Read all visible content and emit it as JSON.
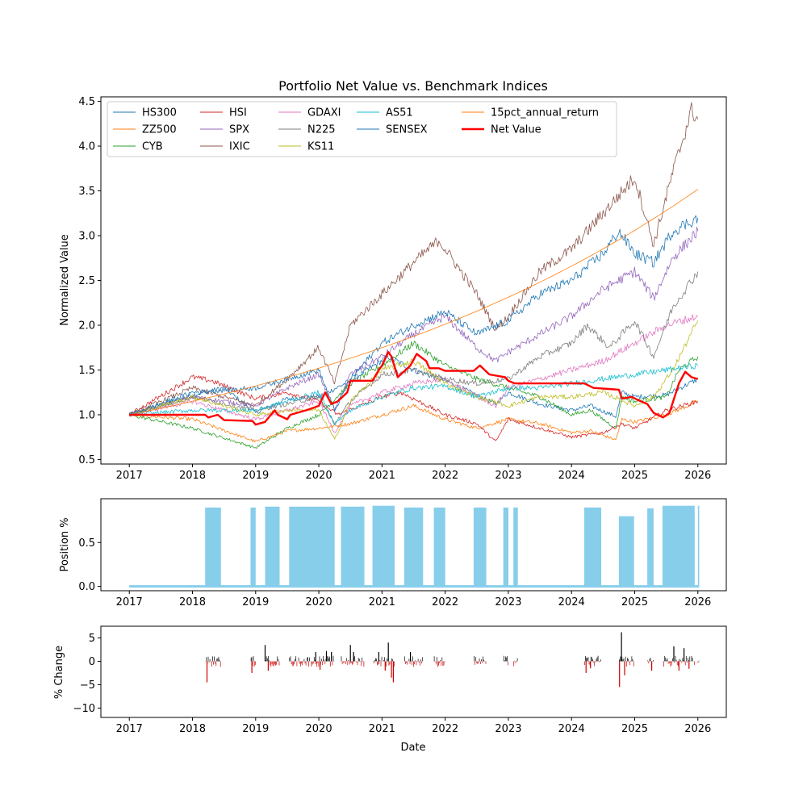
{
  "chart_data": [
    {
      "type": "line",
      "title": "Portfolio Net Value vs. Benchmark Indices",
      "xlabel": "",
      "ylabel": "Normalized Value",
      "xlim": [
        2016.55,
        2026.45
      ],
      "ylim": [
        0.45,
        4.55
      ],
      "x_ticks": [
        2017,
        2018,
        2019,
        2020,
        2021,
        2022,
        2023,
        2024,
        2025,
        2026
      ],
      "x_tick_labels": [
        "2017",
        "2018",
        "2019",
        "2020",
        "2021",
        "2022",
        "2023",
        "2024",
        "2025",
        "2026"
      ],
      "y_ticks": [
        0.5,
        1.0,
        1.5,
        2.0,
        2.5,
        3.0,
        3.5,
        4.0,
        4.5
      ],
      "y_tick_labels": [
        "0.5",
        "1.0",
        "1.5",
        "2.0",
        "2.5",
        "3.0",
        "3.5",
        "4.0",
        "4.5"
      ],
      "grid": false,
      "legend_position": "top-left",
      "series": [
        {
          "name": "HS300",
          "color": "#1f77b4",
          "x": [
            2017,
            2018,
            2018.5,
            2019,
            2019.5,
            2020,
            2020.5,
            2021.1,
            2021.5,
            2022,
            2022.5,
            2022.8,
            2023,
            2023.5,
            2024,
            2024.3,
            2024.7,
            2024.8,
            2025,
            2025.5,
            2026
          ],
          "y": [
            1.0,
            1.22,
            1.3,
            1.02,
            1.18,
            1.2,
            1.38,
            1.65,
            1.5,
            1.38,
            1.22,
            1.12,
            1.25,
            1.12,
            1.05,
            1.1,
            0.98,
            1.25,
            1.2,
            1.22,
            1.4
          ]
        },
        {
          "name": "ZZ500",
          "color": "#ff7f0e",
          "x": [
            2017,
            2018,
            2019,
            2019.5,
            2020,
            2020.5,
            2021,
            2021.5,
            2022,
            2022.5,
            2023,
            2023.5,
            2024,
            2024.3,
            2024.7,
            2024.8,
            2025,
            2025.5,
            2026
          ],
          "y": [
            1.0,
            0.95,
            0.7,
            0.82,
            0.85,
            0.9,
            1.0,
            1.1,
            0.95,
            0.85,
            0.95,
            0.9,
            0.8,
            0.82,
            0.72,
            0.95,
            0.92,
            1.0,
            1.15
          ]
        },
        {
          "name": "CYB",
          "color": "#2ca02c",
          "x": [
            2017,
            2018,
            2019,
            2019.5,
            2020,
            2020.5,
            2021,
            2021.5,
            2022,
            2022.5,
            2023,
            2023.5,
            2024,
            2024.3,
            2024.7,
            2024.8,
            2025,
            2025.5,
            2025.7,
            2026
          ],
          "y": [
            1.0,
            0.85,
            0.63,
            0.85,
            1.0,
            1.35,
            1.55,
            1.8,
            1.55,
            1.4,
            1.3,
            1.2,
            1.0,
            1.05,
            0.85,
            1.2,
            1.15,
            1.2,
            1.5,
            1.65
          ]
        },
        {
          "name": "HSI",
          "color": "#d62728",
          "x": [
            2017,
            2018,
            2018.3,
            2019,
            2019.5,
            2020,
            2020.3,
            2021,
            2021.3,
            2022,
            2022.5,
            2022.8,
            2023,
            2023.5,
            2024,
            2024.5,
            2024.8,
            2025,
            2025.5,
            2026
          ],
          "y": [
            1.0,
            1.42,
            1.38,
            1.18,
            1.25,
            1.15,
            1.0,
            1.2,
            1.25,
            1.0,
            0.9,
            0.7,
            0.95,
            0.85,
            0.75,
            0.8,
            0.9,
            0.85,
            1.05,
            1.15
          ]
        },
        {
          "name": "SPX",
          "color": "#9467bd",
          "x": [
            2017,
            2018,
            2019,
            2019.5,
            2020,
            2020.25,
            2020.5,
            2021,
            2021.5,
            2022,
            2022.5,
            2022.8,
            2023,
            2023.5,
            2024,
            2024.5,
            2025,
            2025.3,
            2025.6,
            2026
          ],
          "y": [
            1.0,
            1.2,
            1.1,
            1.3,
            1.45,
            1.05,
            1.45,
            1.65,
            1.9,
            2.1,
            1.75,
            1.6,
            1.7,
            1.9,
            2.1,
            2.4,
            2.6,
            2.3,
            2.75,
            3.05
          ]
        },
        {
          "name": "IXIC",
          "color": "#8c564b",
          "x": [
            2017,
            2018,
            2019,
            2019.5,
            2020,
            2020.25,
            2020.5,
            2021,
            2021.5,
            2021.9,
            2022.5,
            2022.8,
            2023,
            2023.5,
            2024,
            2024.5,
            2025,
            2025.3,
            2025.6,
            2025.9,
            2026
          ],
          "y": [
            1.0,
            1.3,
            1.1,
            1.4,
            1.75,
            1.35,
            2.0,
            2.35,
            2.7,
            2.95,
            2.35,
            1.95,
            2.1,
            2.6,
            2.85,
            3.25,
            3.65,
            2.9,
            3.7,
            4.4,
            4.3
          ]
        },
        {
          "name": "GDAXI",
          "color": "#e377c2",
          "x": [
            2017,
            2018,
            2019,
            2019.5,
            2020,
            2020.25,
            2020.5,
            2021,
            2021.5,
            2022,
            2022.5,
            2022.8,
            2023,
            2023.5,
            2024,
            2024.5,
            2025,
            2025.5,
            2026
          ],
          "y": [
            1.0,
            1.15,
            0.95,
            1.05,
            1.15,
            0.8,
            1.1,
            1.25,
            1.35,
            1.4,
            1.2,
            1.1,
            1.3,
            1.4,
            1.5,
            1.6,
            1.8,
            2.0,
            2.1
          ]
        },
        {
          "name": "N225",
          "color": "#7f7f7f",
          "x": [
            2017,
            2018,
            2019,
            2019.5,
            2020,
            2020.25,
            2020.5,
            2021,
            2021.5,
            2022,
            2022.5,
            2023,
            2023.5,
            2024,
            2024.25,
            2024.6,
            2025,
            2025.3,
            2025.6,
            2026
          ],
          "y": [
            1.0,
            1.2,
            1.05,
            1.12,
            1.2,
            0.9,
            1.15,
            1.45,
            1.5,
            1.4,
            1.35,
            1.4,
            1.65,
            1.8,
            2.0,
            1.75,
            2.05,
            1.65,
            2.2,
            2.6
          ]
        },
        {
          "name": "KS11",
          "color": "#bcbd22",
          "x": [
            2017,
            2018,
            2019,
            2019.5,
            2020,
            2020.25,
            2020.5,
            2021,
            2021.5,
            2022,
            2022.5,
            2023,
            2023.5,
            2024,
            2024.5,
            2025,
            2025.3,
            2025.6,
            2026
          ],
          "y": [
            1.0,
            1.2,
            1.0,
            1.05,
            1.05,
            0.72,
            1.15,
            1.5,
            1.6,
            1.35,
            1.2,
            1.1,
            1.2,
            1.2,
            1.25,
            1.1,
            1.2,
            1.5,
            2.05
          ]
        },
        {
          "name": "AS51",
          "color": "#17becf",
          "x": [
            2017,
            2018,
            2019,
            2019.5,
            2020,
            2020.25,
            2020.5,
            2021,
            2021.5,
            2022,
            2022.5,
            2023,
            2023.5,
            2024,
            2024.5,
            2025,
            2025.5,
            2026
          ],
          "y": [
            1.0,
            1.05,
            1.05,
            1.15,
            1.25,
            0.9,
            1.05,
            1.2,
            1.3,
            1.32,
            1.2,
            1.3,
            1.3,
            1.35,
            1.4,
            1.45,
            1.5,
            1.55
          ]
        },
        {
          "name": "SENSEX",
          "color": "#1f77b4",
          "x": [
            2017,
            2018,
            2019,
            2019.5,
            2020,
            2020.25,
            2020.5,
            2021,
            2021.5,
            2022,
            2022.5,
            2023,
            2023.5,
            2024,
            2024.5,
            2024.75,
            2025,
            2025.3,
            2025.6,
            2026
          ],
          "y": [
            1.0,
            1.25,
            1.3,
            1.4,
            1.5,
            1.05,
            1.4,
            1.8,
            2.0,
            2.15,
            1.9,
            2.05,
            2.35,
            2.5,
            2.8,
            3.05,
            2.8,
            2.7,
            3.05,
            3.2
          ]
        },
        {
          "name": "15pct_annual_return",
          "color": "#ff7f0e",
          "x": [
            2017,
            2018,
            2019,
            2020,
            2021,
            2022,
            2023,
            2024,
            2025,
            2026
          ],
          "y": [
            1.0,
            1.15,
            1.32,
            1.52,
            1.75,
            2.01,
            2.31,
            2.66,
            3.06,
            3.52
          ]
        },
        {
          "name": "Net Value",
          "color": "#ff0000",
          "x": [
            2017,
            2018.2,
            2018.25,
            2018.4,
            2018.5,
            2018.95,
            2019.0,
            2019.15,
            2019.3,
            2019.35,
            2019.5,
            2019.55,
            2019.8,
            2020.0,
            2020.1,
            2020.2,
            2020.3,
            2020.45,
            2020.5,
            2020.85,
            2020.95,
            2021.0,
            2021.1,
            2021.15,
            2021.25,
            2021.45,
            2021.55,
            2021.7,
            2021.75,
            2021.9,
            2022.0,
            2022.45,
            2022.55,
            2022.7,
            2022.95,
            2023.0,
            2023.1,
            2023.15,
            2024.2,
            2024.35,
            2024.75,
            2024.8,
            2024.95,
            2025.1,
            2025.2,
            2025.3,
            2025.45,
            2025.55,
            2025.7,
            2025.8,
            2025.9,
            2026
          ],
          "y": [
            1.0,
            1.0,
            0.97,
            1.0,
            0.94,
            0.93,
            0.89,
            0.92,
            1.05,
            1.0,
            0.95,
            1.0,
            1.05,
            1.1,
            1.25,
            1.12,
            1.15,
            1.25,
            1.38,
            1.38,
            1.5,
            1.55,
            1.7,
            1.65,
            1.42,
            1.55,
            1.68,
            1.6,
            1.52,
            1.52,
            1.49,
            1.49,
            1.55,
            1.45,
            1.42,
            1.38,
            1.35,
            1.35,
            1.35,
            1.3,
            1.28,
            1.18,
            1.2,
            1.15,
            1.12,
            1.02,
            0.97,
            1.02,
            1.35,
            1.48,
            1.42,
            1.4
          ]
        }
      ]
    },
    {
      "type": "area",
      "title": "",
      "xlabel": "",
      "ylabel": "Position %",
      "xlim": [
        2016.55,
        2026.45
      ],
      "ylim": [
        -0.05,
        1.0
      ],
      "x_ticks": [
        2017,
        2018,
        2019,
        2020,
        2021,
        2022,
        2023,
        2024,
        2025,
        2026
      ],
      "x_tick_labels": [
        "2017",
        "2018",
        "2019",
        "2020",
        "2021",
        "2022",
        "2023",
        "2024",
        "2025",
        "2026"
      ],
      "y_ticks": [
        0.0,
        0.5
      ],
      "y_tick_labels": [
        "0.0",
        "0.5"
      ],
      "color": "#87ceeb",
      "baseline": 0.0,
      "position_blocks": [
        {
          "start": 2018.2,
          "end": 2018.45,
          "value": 0.9
        },
        {
          "start": 2018.92,
          "end": 2019.0,
          "value": 0.9
        },
        {
          "start": 2019.15,
          "end": 2019.38,
          "value": 0.91
        },
        {
          "start": 2019.53,
          "end": 2020.25,
          "value": 0.91
        },
        {
          "start": 2020.35,
          "end": 2020.72,
          "value": 0.91
        },
        {
          "start": 2020.85,
          "end": 2021.2,
          "value": 0.92
        },
        {
          "start": 2021.35,
          "end": 2021.65,
          "value": 0.9
        },
        {
          "start": 2021.82,
          "end": 2022.0,
          "value": 0.9
        },
        {
          "start": 2022.45,
          "end": 2022.65,
          "value": 0.9
        },
        {
          "start": 2022.92,
          "end": 2023.0,
          "value": 0.9
        },
        {
          "start": 2023.08,
          "end": 2023.15,
          "value": 0.9
        },
        {
          "start": 2024.2,
          "end": 2024.47,
          "value": 0.9
        },
        {
          "start": 2024.75,
          "end": 2024.99,
          "value": 0.8
        },
        {
          "start": 2025.2,
          "end": 2025.3,
          "value": 0.89
        },
        {
          "start": 2025.44,
          "end": 2025.95,
          "value": 0.92
        },
        {
          "start": 2026.0,
          "end": 2026.02,
          "value": 0.92
        }
      ]
    },
    {
      "type": "bar",
      "title": "",
      "xlabel": "Date",
      "ylabel": "% Change",
      "xlim": [
        2016.55,
        2026.45
      ],
      "ylim": [
        -12,
        7.5
      ],
      "x_ticks": [
        2017,
        2018,
        2019,
        2020,
        2021,
        2022,
        2023,
        2024,
        2025,
        2026
      ],
      "x_tick_labels": [
        "2017",
        "2018",
        "2019",
        "2020",
        "2021",
        "2022",
        "2023",
        "2024",
        "2025",
        "2026"
      ],
      "y_ticks": [
        5,
        0,
        -5,
        -10
      ],
      "y_tick_labels": [
        "5",
        "0",
        "−5",
        "−10"
      ],
      "colors": {
        "positive": "#000000",
        "negative": "#cc0000"
      },
      "large_changes": [
        {
          "x": 2018.23,
          "value": -4.5
        },
        {
          "x": 2018.94,
          "value": -2.5
        },
        {
          "x": 2019.15,
          "value": 3.5
        },
        {
          "x": 2019.2,
          "value": -2.0
        },
        {
          "x": 2019.95,
          "value": 2.0
        },
        {
          "x": 2020.02,
          "value": -1.8
        },
        {
          "x": 2020.12,
          "value": 2.2
        },
        {
          "x": 2020.2,
          "value": 2.0
        },
        {
          "x": 2020.5,
          "value": 3.5
        },
        {
          "x": 2020.55,
          "value": 2.0
        },
        {
          "x": 2020.95,
          "value": 2.0
        },
        {
          "x": 2021.1,
          "value": 4.0
        },
        {
          "x": 2021.15,
          "value": -3.5
        },
        {
          "x": 2021.18,
          "value": -4.5
        },
        {
          "x": 2021.05,
          "value": -2.0
        },
        {
          "x": 2021.45,
          "value": 2.0
        },
        {
          "x": 2024.23,
          "value": -2.5
        },
        {
          "x": 2024.3,
          "value": -1.5
        },
        {
          "x": 2024.76,
          "value": -5.5
        },
        {
          "x": 2024.79,
          "value": 6.2
        },
        {
          "x": 2024.84,
          "value": -3.0
        },
        {
          "x": 2025.27,
          "value": -2.0
        },
        {
          "x": 2025.62,
          "value": 3.2
        },
        {
          "x": 2025.7,
          "value": -2.0
        },
        {
          "x": 2025.78,
          "value": 2.8
        },
        {
          "x": 2025.86,
          "value": -1.6
        }
      ]
    }
  ]
}
